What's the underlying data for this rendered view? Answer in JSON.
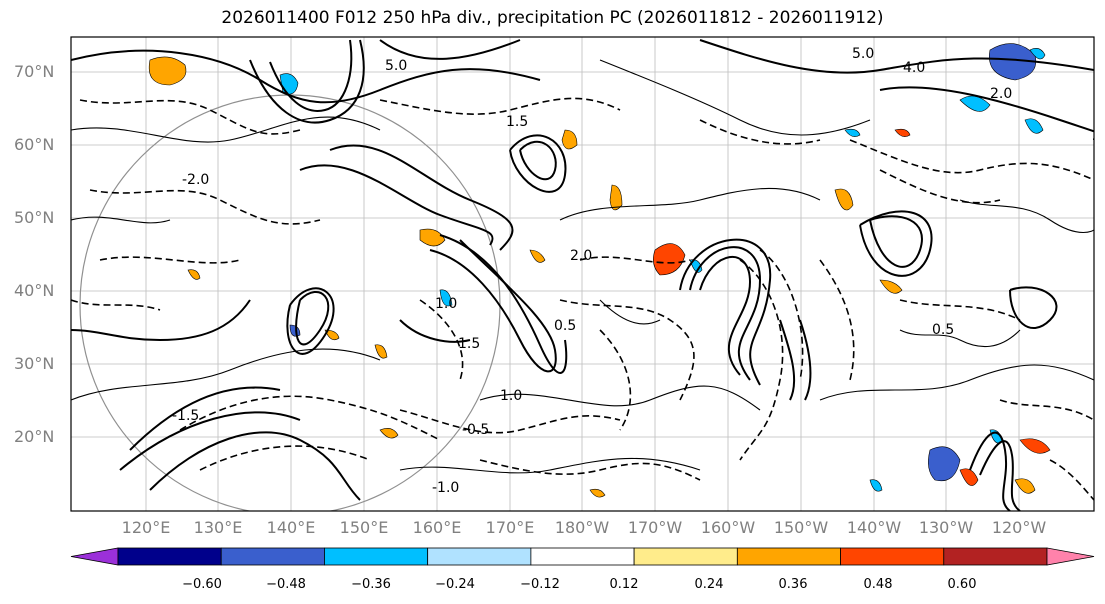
{
  "title": "2026011400 F012 250 hPa div., precipitation PC (2026011812 - 2026011912)",
  "lat_labels": [
    "70°N",
    "60°N",
    "50°N",
    "40°N",
    "30°N",
    "20°N"
  ],
  "lon_labels": [
    "120°E",
    "130°E",
    "140°E",
    "150°E",
    "160°E",
    "170°E",
    "180°W",
    "170°W",
    "160°W",
    "150°W",
    "140°W",
    "130°W",
    "120°W"
  ],
  "colorbar": {
    "colors": [
      "#9b30d9",
      "#00008b",
      "#3a5fcd",
      "#00bfff",
      "#b0e2ff",
      "#ffffff",
      "#ffec8b",
      "#ffa500",
      "#ff4500",
      "#b22222",
      "#ff82ab"
    ],
    "tick_labels": [
      "−0.60",
      "−0.48",
      "−0.36",
      "−0.24",
      "−0.12",
      "0.12",
      "0.24",
      "0.36",
      "0.48",
      "0.60"
    ]
  },
  "contour_labels": [
    "5.0",
    "4.0",
    "2.0",
    "1.5",
    "1.0",
    "0.5",
    "-0.5",
    "-1.0",
    "-1.5",
    "-2.0"
  ]
}
